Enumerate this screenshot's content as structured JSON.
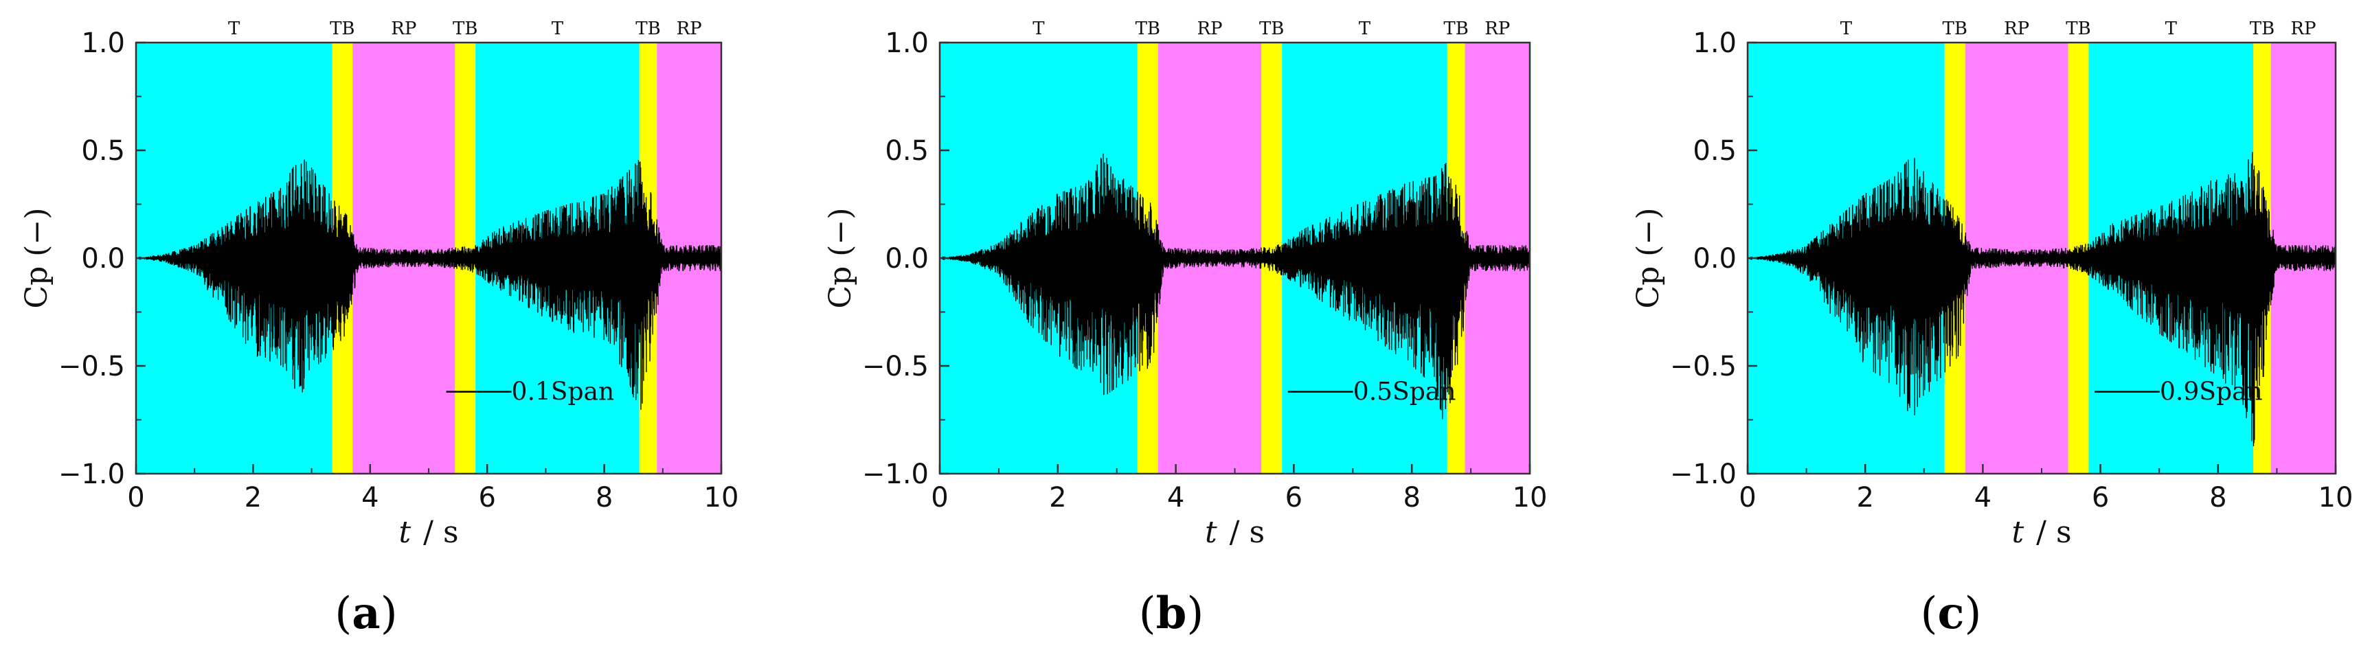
{
  "chart_data": [
    {
      "type": "line",
      "panel_label": "(a)",
      "caption_letter": "a",
      "xlabel_var": "t",
      "xlabel_unit": "/  s",
      "ylabel": "Cp (−)",
      "xlim": [
        0,
        10
      ],
      "ylim": [
        -1.0,
        1.0
      ],
      "xticks": [
        0,
        2,
        4,
        6,
        8,
        10
      ],
      "yticks": [
        -1.0,
        -0.5,
        0.0,
        0.5,
        1.0
      ],
      "ytick_labels": [
        "−1.0",
        "−0.5",
        "0.0",
        "0.5",
        "1.0"
      ],
      "grid": false,
      "phase_bands": [
        {
          "label": "T",
          "start": 0.0,
          "end": 3.35,
          "color": "#00FFFF"
        },
        {
          "label": "TB",
          "start": 3.35,
          "end": 3.7,
          "color": "#FFFF00"
        },
        {
          "label": "RP",
          "start": 3.7,
          "end": 5.45,
          "color": "#FF80FF"
        },
        {
          "label": "TB",
          "start": 5.45,
          "end": 5.8,
          "color": "#FFFF00"
        },
        {
          "label": "T",
          "start": 5.8,
          "end": 8.6,
          "color": "#00FFFF"
        },
        {
          "label": "TB",
          "start": 8.6,
          "end": 8.9,
          "color": "#FFFF00"
        },
        {
          "label": "RP",
          "start": 8.9,
          "end": 10.0,
          "color": "#FF80FF"
        }
      ],
      "series": [
        {
          "name": "0.1Span",
          "color": "#000000",
          "envelope": {
            "t": [
              0,
              0.5,
              1.0,
              1.5,
              2.0,
              2.5,
              2.8,
              3.0,
              3.3,
              3.6,
              3.8,
              4.5,
              5.0,
              5.5,
              5.8,
              6.2,
              7.0,
              7.5,
              8.0,
              8.4,
              8.6,
              8.8,
              9.0,
              10.0
            ],
            "upper": [
              0.0,
              0.02,
              0.06,
              0.15,
              0.25,
              0.33,
              0.48,
              0.42,
              0.3,
              0.2,
              0.05,
              0.04,
              0.04,
              0.05,
              0.06,
              0.14,
              0.22,
              0.26,
              0.3,
              0.4,
              0.46,
              0.3,
              0.06,
              0.06
            ],
            "lower": [
              0.0,
              -0.02,
              -0.07,
              -0.25,
              -0.45,
              -0.5,
              -0.65,
              -0.52,
              -0.45,
              -0.35,
              -0.05,
              -0.04,
              -0.04,
              -0.05,
              -0.07,
              -0.15,
              -0.28,
              -0.35,
              -0.38,
              -0.55,
              -0.75,
              -0.45,
              -0.06,
              -0.06
            ]
          }
        }
      ]
    },
    {
      "type": "line",
      "panel_label": "(b)",
      "caption_letter": "b",
      "xlabel_var": "t",
      "xlabel_unit": "/  s",
      "ylabel": "Cp (−)",
      "xlim": [
        0,
        10
      ],
      "ylim": [
        -1.0,
        1.0
      ],
      "xticks": [
        0,
        2,
        4,
        6,
        8,
        10
      ],
      "yticks": [
        -1.0,
        -0.5,
        0.0,
        0.5,
        1.0
      ],
      "ytick_labels": [
        "−1.0",
        "−0.5",
        "0.0",
        "0.5",
        "1.0"
      ],
      "grid": false,
      "phase_bands": [
        {
          "label": "T",
          "start": 0.0,
          "end": 3.35,
          "color": "#00FFFF"
        },
        {
          "label": "TB",
          "start": 3.35,
          "end": 3.7,
          "color": "#FFFF00"
        },
        {
          "label": "RP",
          "start": 3.7,
          "end": 5.45,
          "color": "#FF80FF"
        },
        {
          "label": "TB",
          "start": 5.45,
          "end": 5.8,
          "color": "#FFFF00"
        },
        {
          "label": "T",
          "start": 5.8,
          "end": 8.6,
          "color": "#00FFFF"
        },
        {
          "label": "TB",
          "start": 8.6,
          "end": 8.9,
          "color": "#FFFF00"
        },
        {
          "label": "RP",
          "start": 8.9,
          "end": 10.0,
          "color": "#FF80FF"
        }
      ],
      "series": [
        {
          "name": "0.5Span",
          "color": "#000000",
          "envelope": {
            "t": [
              0,
              0.5,
              1.0,
              1.5,
              2.0,
              2.5,
              2.8,
              3.0,
              3.3,
              3.6,
              3.8,
              4.5,
              5.0,
              5.5,
              5.8,
              6.2,
              7.0,
              7.5,
              8.0,
              8.4,
              8.6,
              8.8,
              9.0,
              10.0
            ],
            "upper": [
              0.0,
              0.02,
              0.07,
              0.2,
              0.3,
              0.35,
              0.5,
              0.4,
              0.32,
              0.25,
              0.05,
              0.04,
              0.04,
              0.05,
              0.07,
              0.14,
              0.24,
              0.3,
              0.36,
              0.38,
              0.45,
              0.3,
              0.06,
              0.06
            ],
            "lower": [
              0.0,
              -0.02,
              -0.08,
              -0.3,
              -0.45,
              -0.55,
              -0.64,
              -0.6,
              -0.55,
              -0.5,
              -0.05,
              -0.04,
              -0.04,
              -0.05,
              -0.08,
              -0.15,
              -0.3,
              -0.4,
              -0.5,
              -0.6,
              -0.85,
              -0.5,
              -0.06,
              -0.06
            ]
          }
        }
      ]
    },
    {
      "type": "line",
      "panel_label": "(c)",
      "caption_letter": "c",
      "xlabel_var": "t",
      "xlabel_unit": "/  s",
      "ylabel": "Cp (−)",
      "xlim": [
        0,
        10
      ],
      "ylim": [
        -1.0,
        1.0
      ],
      "xticks": [
        0,
        2,
        4,
        6,
        8,
        10
      ],
      "yticks": [
        -1.0,
        -0.5,
        0.0,
        0.5,
        1.0
      ],
      "ytick_labels": [
        "−1.0",
        "−0.5",
        "0.0",
        "0.5",
        "1.0"
      ],
      "grid": false,
      "phase_bands": [
        {
          "label": "T",
          "start": 0.0,
          "end": 3.35,
          "color": "#00FFFF"
        },
        {
          "label": "TB",
          "start": 3.35,
          "end": 3.7,
          "color": "#FFFF00"
        },
        {
          "label": "RP",
          "start": 3.7,
          "end": 5.45,
          "color": "#FF80FF"
        },
        {
          "label": "TB",
          "start": 5.45,
          "end": 5.8,
          "color": "#FFFF00"
        },
        {
          "label": "T",
          "start": 5.8,
          "end": 8.6,
          "color": "#00FFFF"
        },
        {
          "label": "TB",
          "start": 8.6,
          "end": 8.9,
          "color": "#FFFF00"
        },
        {
          "label": "RP",
          "start": 8.9,
          "end": 10.0,
          "color": "#FF80FF"
        }
      ],
      "series": [
        {
          "name": "0.9Span",
          "color": "#000000",
          "envelope": {
            "t": [
              0,
              0.5,
              1.0,
              1.5,
              2.0,
              2.5,
              2.8,
              3.0,
              3.3,
              3.6,
              3.8,
              4.5,
              5.0,
              5.5,
              5.8,
              6.2,
              7.0,
              7.5,
              8.0,
              8.4,
              8.6,
              8.8,
              9.0,
              10.0
            ],
            "upper": [
              0.0,
              0.02,
              0.06,
              0.18,
              0.3,
              0.38,
              0.48,
              0.4,
              0.3,
              0.2,
              0.05,
              0.04,
              0.04,
              0.05,
              0.07,
              0.16,
              0.24,
              0.3,
              0.38,
              0.4,
              0.5,
              0.3,
              0.06,
              0.06
            ],
            "lower": [
              0.0,
              -0.02,
              -0.08,
              -0.3,
              -0.5,
              -0.6,
              -0.75,
              -0.65,
              -0.55,
              -0.45,
              -0.05,
              -0.04,
              -0.04,
              -0.05,
              -0.08,
              -0.16,
              -0.35,
              -0.45,
              -0.55,
              -0.65,
              -0.88,
              -0.5,
              -0.06,
              -0.06
            ]
          }
        }
      ]
    }
  ]
}
